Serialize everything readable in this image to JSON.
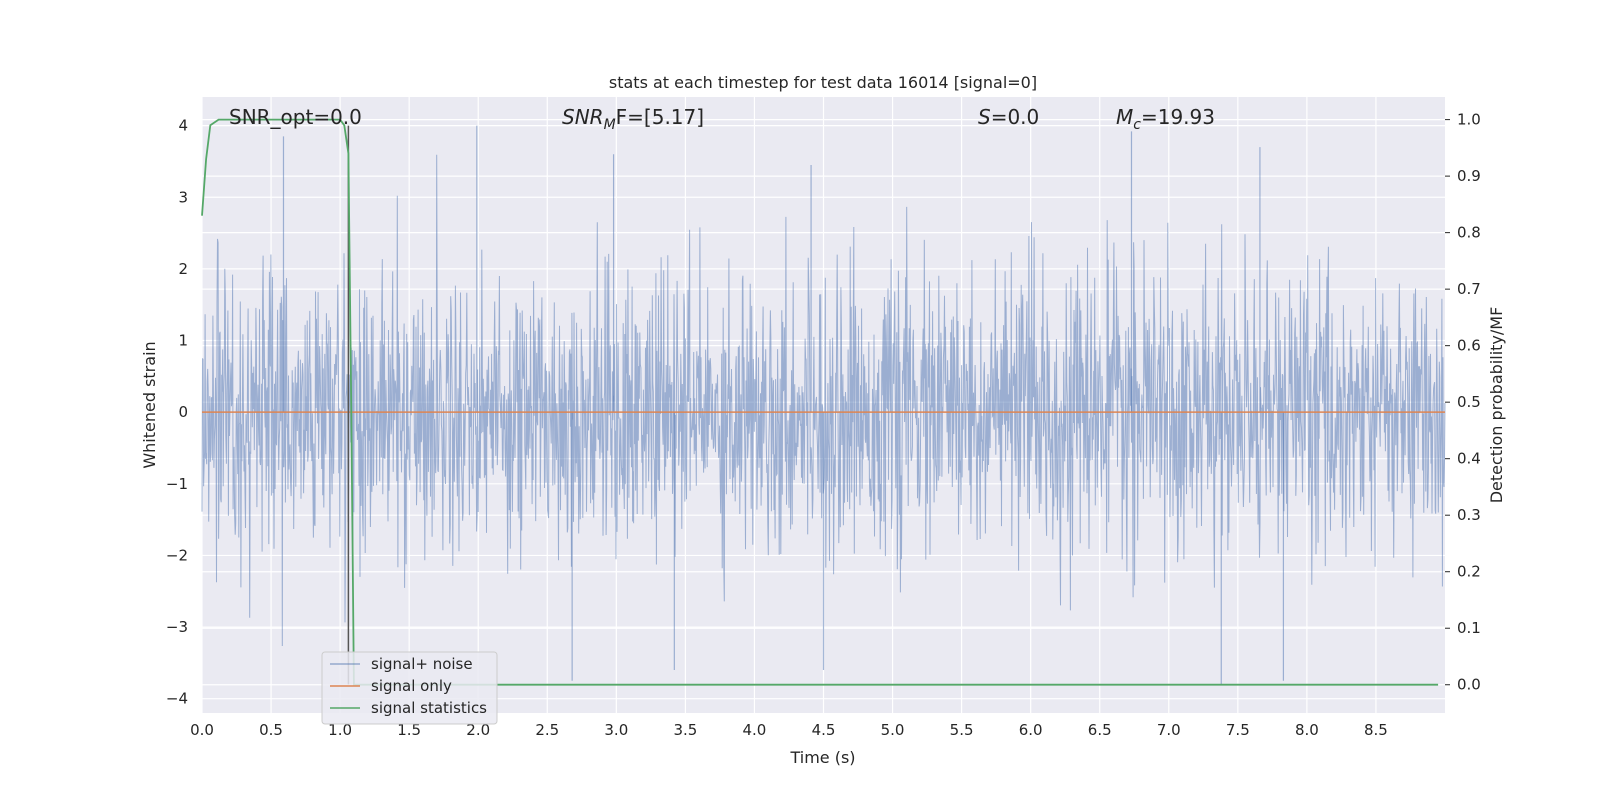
{
  "chart_data": {
    "type": "line",
    "title": "stats at each timestep for test data 16014 [signal=0]",
    "xlabel": "Time (s)",
    "ylabel": "Whitened strain",
    "y2label": "Detection probability/MF",
    "xlim": [
      0.0,
      9.0
    ],
    "ylim": [
      -4.2,
      4.4
    ],
    "y2lim": [
      -0.05,
      1.04
    ],
    "xticks": [
      "0.0",
      "0.5",
      "1.0",
      "1.5",
      "2.0",
      "2.5",
      "3.0",
      "3.5",
      "4.0",
      "4.5",
      "5.0",
      "5.5",
      "6.0",
      "6.5",
      "7.0",
      "7.5",
      "8.0",
      "8.5"
    ],
    "yticks": [
      "−4",
      "−3",
      "−2",
      "−1",
      "0",
      "1",
      "2",
      "3",
      "4"
    ],
    "y2ticks": [
      "0.0",
      "0.1",
      "0.2",
      "0.3",
      "0.4",
      "0.5",
      "0.6",
      "0.7",
      "0.8",
      "0.9",
      "1.0"
    ],
    "grid": true,
    "legend_position": "lower-left",
    "annotations": {
      "snr_opt": "SNR_opt=0.0",
      "snr_mf_base": "SNR",
      "snr_mf_sub": "M",
      "snr_mf_rest": "F=[5.17]",
      "s_label": "S",
      "s_value": "=0.0",
      "mc_base": "M",
      "mc_sub": "c",
      "mc_value": "=19.93"
    },
    "series": [
      {
        "name": "signal+ noise",
        "color": "#4c72b0",
        "axis": "left",
        "description_stats": {
          "t_start": 0.0,
          "t_end": 9.0,
          "y_min": -3.8,
          "y_max": 4.0,
          "y_rms": 1.0
        },
        "peaks": [
          {
            "x": 0.59,
            "y": 3.85
          },
          {
            "x": 1.99,
            "y": 4.0
          },
          {
            "x": 2.98,
            "y": 3.6
          },
          {
            "x": 4.41,
            "y": 3.45
          },
          {
            "x": 6.73,
            "y": 3.92
          },
          {
            "x": 7.66,
            "y": 3.7
          },
          {
            "x": 2.68,
            "y": -3.75
          },
          {
            "x": 3.42,
            "y": -3.6
          },
          {
            "x": 4.5,
            "y": -3.6
          },
          {
            "x": 7.38,
            "y": -3.8
          },
          {
            "x": 7.83,
            "y": -3.75
          }
        ]
      },
      {
        "name": "signal only",
        "color": "#dd8452",
        "axis": "left",
        "x": [
          0.0,
          9.0
        ],
        "y": [
          0.0,
          0.0
        ]
      },
      {
        "name": "signal statistics",
        "color": "#55a868",
        "axis": "right",
        "x": [
          0.0,
          0.03,
          0.06,
          0.12,
          0.2,
          0.4,
          0.6,
          0.8,
          0.95,
          1.0,
          1.03,
          1.06,
          1.08,
          1.1,
          1.2,
          1.5,
          2.0,
          3.0,
          4.0,
          5.0,
          6.0,
          7.0,
          8.0,
          8.95
        ],
        "y": [
          0.83,
          0.93,
          0.99,
          1.0,
          1.0,
          1.0,
          1.0,
          1.0,
          1.0,
          1.0,
          0.99,
          0.94,
          0.5,
          0.0,
          0.0,
          0.0,
          0.0,
          0.0,
          0.0,
          0.0,
          0.0,
          0.0,
          0.0,
          0.0
        ]
      }
    ],
    "vline": {
      "x": 1.06,
      "color": "#555555"
    }
  }
}
